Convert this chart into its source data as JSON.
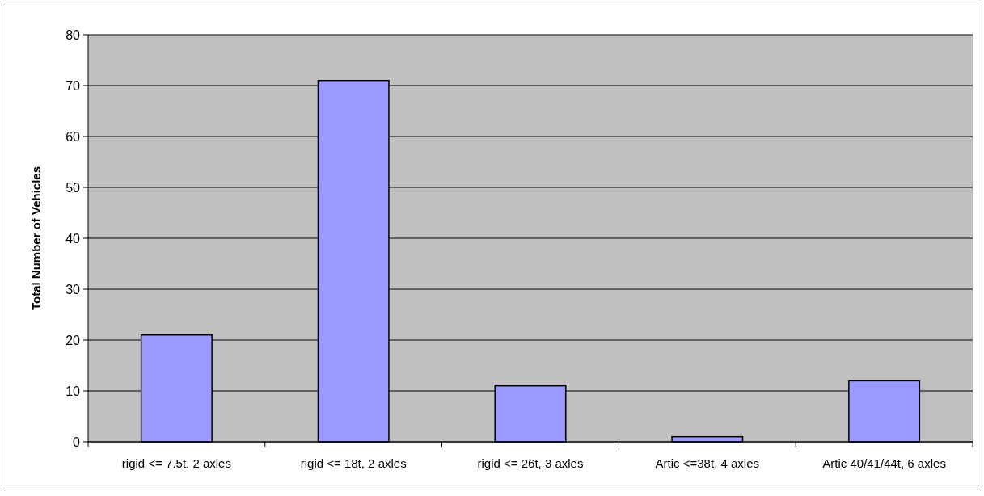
{
  "chart_data": {
    "type": "bar",
    "ylabel": "Total Number of Vehicles",
    "categories": [
      "rigid <= 7.5t, 2 axles",
      "rigid <= 18t, 2 axles",
      "rigid <= 26t, 3 axles",
      "Artic <=38t, 4 axles",
      "Artic 40/41/44t, 6 axles"
    ],
    "values": [
      21,
      71,
      11,
      1,
      12
    ],
    "color": "#9999ff",
    "ylim": [
      0,
      80
    ],
    "yticks": [
      0,
      10,
      20,
      30,
      40,
      50,
      60,
      70,
      80
    ],
    "grid": "y"
  }
}
